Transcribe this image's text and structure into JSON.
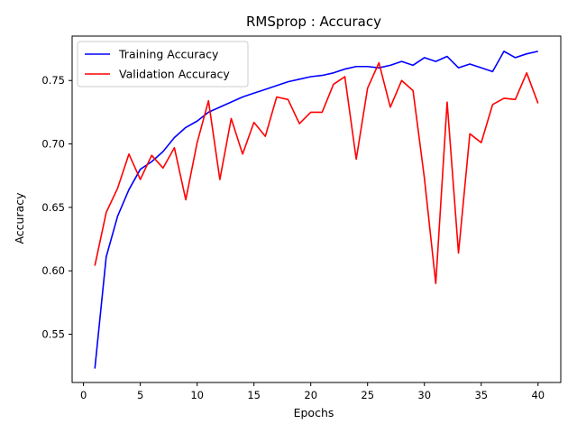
{
  "chart_data": {
    "type": "line",
    "title": "RMSprop : Accuracy",
    "xlabel": "Epochs",
    "ylabel": "Accuracy",
    "xlim": [
      -1.0,
      42.0
    ],
    "ylim": [
      0.512,
      0.785
    ],
    "xticks": [
      0,
      5,
      10,
      15,
      20,
      25,
      30,
      35,
      40
    ],
    "yticks": [
      0.55,
      0.6,
      0.65,
      0.7,
      0.75
    ],
    "ytick_labels": [
      "0.55",
      "0.60",
      "0.65",
      "0.70",
      "0.75"
    ],
    "grid": false,
    "legend_position": "upper-left",
    "x": [
      1,
      2,
      3,
      4,
      5,
      6,
      7,
      8,
      9,
      10,
      11,
      12,
      13,
      14,
      15,
      16,
      17,
      18,
      19,
      20,
      21,
      22,
      23,
      24,
      25,
      26,
      27,
      28,
      29,
      30,
      31,
      32,
      33,
      34,
      35,
      36,
      37,
      38,
      39,
      40
    ],
    "series": [
      {
        "name": "Training Accuracy",
        "color": "#0000ff",
        "values": [
          0.523,
          0.611,
          0.643,
          0.664,
          0.68,
          0.686,
          0.694,
          0.705,
          0.713,
          0.718,
          0.725,
          0.729,
          0.733,
          0.737,
          0.74,
          0.743,
          0.746,
          0.749,
          0.751,
          0.753,
          0.754,
          0.756,
          0.759,
          0.761,
          0.761,
          0.76,
          0.762,
          0.765,
          0.762,
          0.768,
          0.765,
          0.769,
          0.76,
          0.763,
          0.76,
          0.757,
          0.773,
          0.768,
          0.771,
          0.773
        ]
      },
      {
        "name": "Validation Accuracy",
        "color": "#ff0000",
        "values": [
          0.604,
          0.646,
          0.665,
          0.692,
          0.672,
          0.691,
          0.681,
          0.697,
          0.656,
          0.701,
          0.734,
          0.672,
          0.72,
          0.692,
          0.717,
          0.706,
          0.737,
          0.735,
          0.716,
          0.725,
          0.725,
          0.747,
          0.753,
          0.688,
          0.744,
          0.764,
          0.729,
          0.75,
          0.742,
          0.673,
          0.59,
          0.733,
          0.614,
          0.708,
          0.701,
          0.731,
          0.736,
          0.735,
          0.756,
          0.732
        ]
      }
    ]
  }
}
